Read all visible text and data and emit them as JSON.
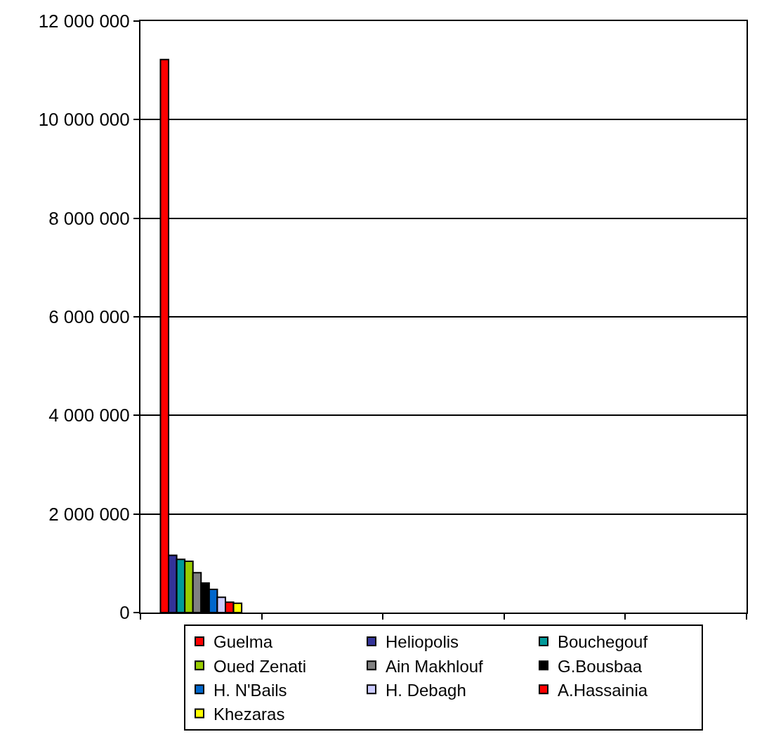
{
  "chart_data": {
    "type": "bar",
    "categories": [
      null,
      null,
      null,
      null,
      null
    ],
    "series": [
      {
        "name": "Guelma",
        "color": "#ff0000",
        "values": [
          11220000,
          null,
          null,
          null,
          null
        ]
      },
      {
        "name": "Heliopolis",
        "color": "#333399",
        "values": [
          1160000,
          null,
          null,
          null,
          null
        ]
      },
      {
        "name": "Bouchegouf",
        "color": "#009999",
        "values": [
          1080000,
          null,
          null,
          null,
          null
        ]
      },
      {
        "name": "Oued Zenati",
        "color": "#99cc00",
        "values": [
          1040000,
          null,
          null,
          null,
          null
        ]
      },
      {
        "name": "Ain Makhlouf",
        "color": "#808080",
        "values": [
          810000,
          null,
          null,
          null,
          null
        ]
      },
      {
        "name": "G.Bousbaa",
        "color": "#000000",
        "values": [
          600000,
          null,
          null,
          null,
          null
        ]
      },
      {
        "name": "H. N'Bails",
        "color": "#0066cc",
        "values": [
          470000,
          null,
          null,
          null,
          null
        ]
      },
      {
        "name": "H. Debagh",
        "color": "#ccccff",
        "values": [
          310000,
          null,
          null,
          null,
          null
        ]
      },
      {
        "name": "A.Hassainia",
        "color": "#ff0000",
        "values": [
          210000,
          null,
          null,
          null,
          null
        ]
      },
      {
        "name": "Khezaras",
        "color": "#ffff00",
        "values": [
          190000,
          null,
          null,
          null,
          null
        ]
      }
    ],
    "ylim": [
      0,
      12000000
    ],
    "yticks": [
      {
        "value": 0,
        "label": "0"
      },
      {
        "value": 2000000,
        "label": "2 000 000"
      },
      {
        "value": 4000000,
        "label": "4 000 000"
      },
      {
        "value": 6000000,
        "label": "6 000 000"
      },
      {
        "value": 8000000,
        "label": "8 000 000"
      },
      {
        "value": 10000000,
        "label": "10 000 000"
      },
      {
        "value": 12000000,
        "label": "12 000 000"
      }
    ],
    "grid": "y",
    "legend": "bottom"
  }
}
